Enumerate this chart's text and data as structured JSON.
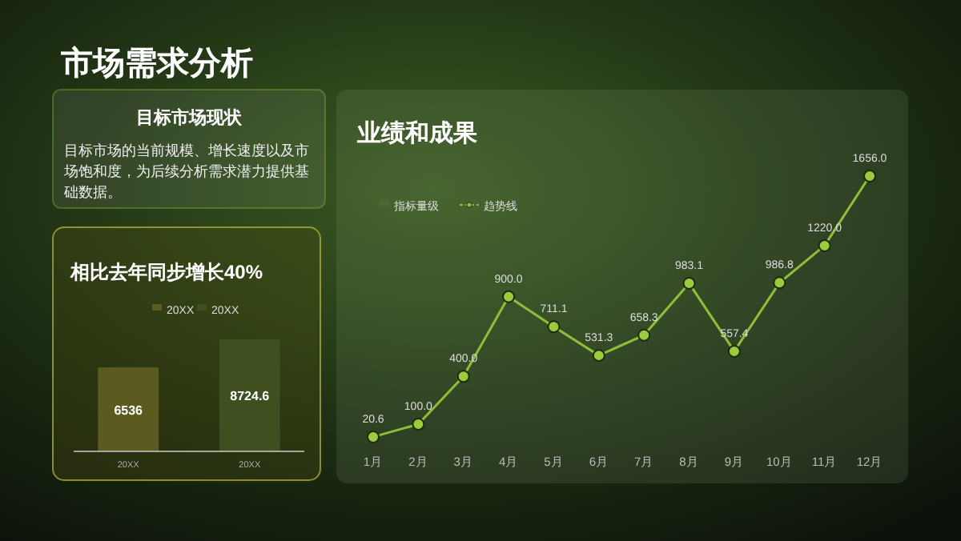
{
  "chart_data": [
    {
      "type": "other",
      "title": "市场需求分析"
    },
    {
      "type": "other",
      "title": "目标市场现状",
      "annotations": [
        "目标市场的当前规模、增长速度以及市场饱和度，为后续分析需求潜力提供基础数据。"
      ]
    },
    {
      "type": "bar",
      "title": "相比去年同步增长40%",
      "categories": [
        "20XX",
        "20XX"
      ],
      "series": [
        {
          "name": "20XX",
          "color": "#5b5a1f",
          "values": [
            6536,
            null
          ]
        },
        {
          "name": "20XX",
          "color": "#3f4f1f",
          "values": [
            null,
            8724.6
          ]
        }
      ],
      "tick_labels": "x",
      "data_labels": true,
      "legend": "top"
    },
    {
      "type": "line",
      "title": "业绩和成果",
      "categories": [
        "1月",
        "2月",
        "3月",
        "4月",
        "5月",
        "6月",
        "7月",
        "8月",
        "9月",
        "10月",
        "11月",
        "12月"
      ],
      "series": [
        {
          "name": "指标量级",
          "type": "bar",
          "color": "#4a6a32",
          "values": [
            null,
            null,
            null,
            null,
            null,
            null,
            null,
            null,
            null,
            null,
            null,
            null
          ]
        },
        {
          "name": "趋势线",
          "type": "line",
          "color": "#8fbf3a",
          "values": [
            20.6,
            100.0,
            400.0,
            900.0,
            711.1,
            531.3,
            658.3,
            983.1,
            557.4,
            986.8,
            1220.0,
            1656.0
          ],
          "value_labels": [
            "20.6",
            "100.0",
            "400.0",
            "900.0",
            "711.1",
            "531.3",
            "658.3",
            "983.1",
            "557.4",
            "986.8",
            "1220.0",
            "1656.0"
          ]
        }
      ],
      "tick_labels": "x",
      "marker": "circle",
      "legend": "top left"
    }
  ]
}
